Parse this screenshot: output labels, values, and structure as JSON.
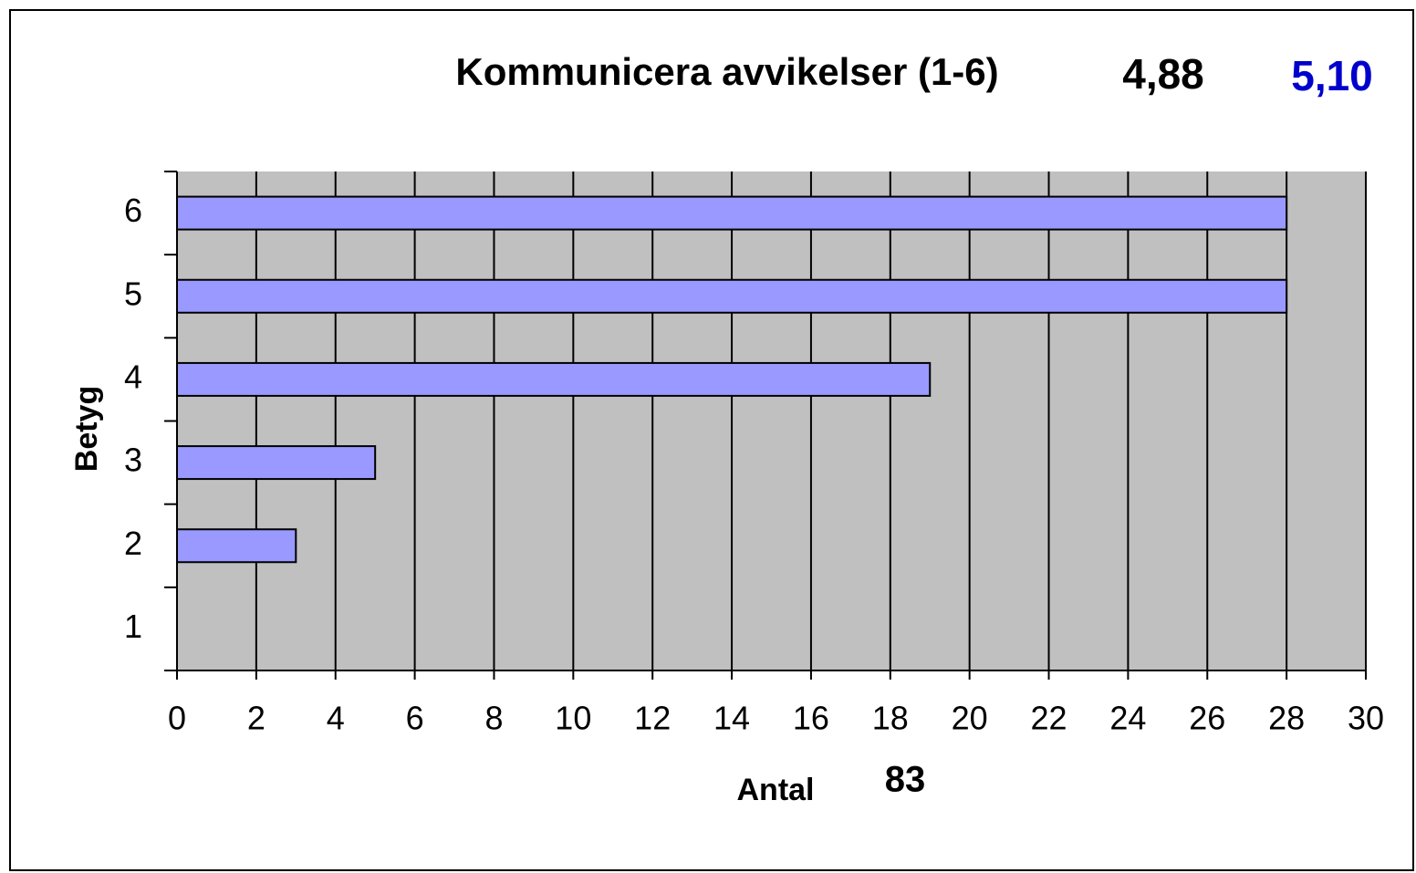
{
  "chart_data": {
    "type": "bar",
    "orientation": "horizontal",
    "title": "Kommunicera avvikelser (1-6)",
    "x_label": "Antal",
    "y_label": "Betyg",
    "categories": [
      "1",
      "2",
      "3",
      "4",
      "5",
      "6"
    ],
    "values": [
      0,
      3,
      5,
      19,
      28,
      28
    ],
    "color": "#9999ff",
    "background": "#c0c0c0",
    "xlim": [
      0,
      30
    ],
    "xticks": [
      0,
      2,
      4,
      6,
      8,
      10,
      12,
      14,
      16,
      18,
      20,
      22,
      24,
      26,
      28,
      30
    ],
    "grid": true,
    "annotations": [
      {
        "text": "4,88",
        "color": "#000000"
      },
      {
        "text": "5,10",
        "color": "#0000cc"
      },
      {
        "text": "83",
        "color": "#000000"
      }
    ]
  }
}
